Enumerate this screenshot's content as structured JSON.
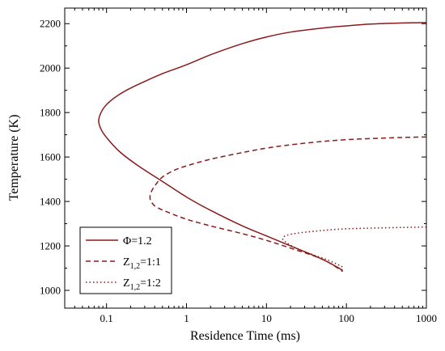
{
  "chart_data": {
    "type": "line",
    "xlabel": "Residence Time (ms)",
    "ylabel": "Temperature (K)",
    "xscale": "log",
    "xlim": [
      0.03,
      1000
    ],
    "ylim": [
      920,
      2270
    ],
    "xticks": [
      {
        "value": 0.1,
        "label": "0.1"
      },
      {
        "value": 1,
        "label": "1"
      },
      {
        "value": 10,
        "label": "10"
      },
      {
        "value": 100,
        "label": "100"
      },
      {
        "value": 1000,
        "label": "1000"
      }
    ],
    "yticks": [
      {
        "value": 1000,
        "label": "1000"
      },
      {
        "value": 1200,
        "label": "1200"
      },
      {
        "value": 1400,
        "label": "1400"
      },
      {
        "value": 1600,
        "label": "1600"
      },
      {
        "value": 1800,
        "label": "1800"
      },
      {
        "value": 2000,
        "label": "2000"
      },
      {
        "value": 2200,
        "label": "2200"
      }
    ],
    "grid": false,
    "legend_position": "bottom-left",
    "color": "#8b1a1a",
    "series": [
      {
        "name": "Φ=1.2",
        "name_sub": "",
        "name_rest": "",
        "dash": "solid",
        "x": [
          1000,
          500,
          200,
          100,
          50,
          20,
          10,
          5,
          2,
          1,
          0.5,
          0.3,
          0.2,
          0.15,
          0.11,
          0.09,
          0.08,
          0.082,
          0.09,
          0.11,
          0.15,
          0.25,
          0.5,
          1,
          2,
          5,
          10,
          20,
          50,
          90
        ],
        "y": [
          2205,
          2203,
          2198,
          2190,
          2180,
          2162,
          2140,
          2110,
          2060,
          2015,
          1975,
          1940,
          1910,
          1885,
          1850,
          1815,
          1770,
          1740,
          1710,
          1670,
          1620,
          1560,
          1490,
          1420,
          1360,
          1290,
          1245,
          1200,
          1140,
          1090
        ]
      },
      {
        "name": "Z",
        "name_sub": "1,2",
        "name_rest": "=1:1",
        "dash": "dashed",
        "x": [
          1000,
          500,
          200,
          100,
          50,
          20,
          10,
          5,
          2,
          1,
          0.7,
          0.5,
          0.42,
          0.37,
          0.35,
          0.36,
          0.42,
          0.6,
          1,
          2,
          5,
          10,
          20,
          50,
          90
        ],
        "y": [
          1690,
          1688,
          1683,
          1678,
          1670,
          1655,
          1640,
          1620,
          1590,
          1560,
          1540,
          1510,
          1480,
          1450,
          1425,
          1400,
          1375,
          1350,
          1320,
          1290,
          1255,
          1225,
          1190,
          1140,
          1085
        ]
      },
      {
        "name": "Z",
        "name_sub": "1,2",
        "name_rest": "=1:2",
        "dash": "dotted",
        "x": [
          1000,
          500,
          200,
          100,
          60,
          40,
          25,
          18,
          16,
          17,
          22,
          35,
          60,
          90
        ],
        "y": [
          1285,
          1283,
          1280,
          1277,
          1272,
          1266,
          1258,
          1248,
          1235,
          1220,
          1195,
          1165,
          1135,
          1105
        ]
      }
    ]
  }
}
